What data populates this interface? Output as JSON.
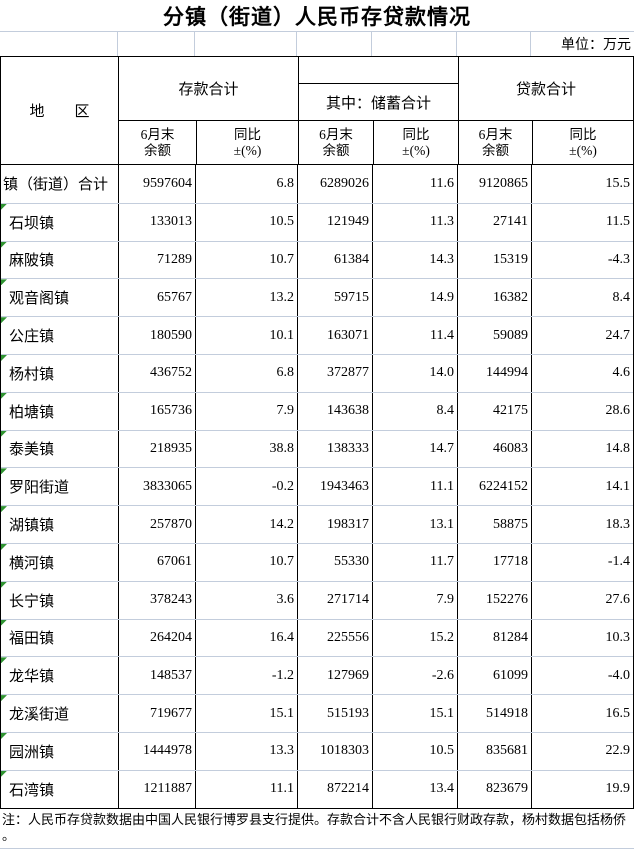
{
  "title": "分镇（街道）人民币存贷款情况",
  "unit_note": "单位：万元",
  "header": {
    "region_label": "地　　区",
    "groups": [
      {
        "label": "存款合计"
      },
      {
        "label": "其中：储蓄合计"
      },
      {
        "label": "贷款合计"
      }
    ],
    "sub": {
      "balance_l1": "6月末",
      "balance_l2": "余额",
      "yoy_l1": "同比",
      "yoy_l2": "±(%)"
    }
  },
  "rows": [
    {
      "name": "镇（街道）合计",
      "values": [
        "9597604",
        "6.8",
        "6289026",
        "11.6",
        "9120865",
        "15.5"
      ],
      "error_indicator": false
    },
    {
      "name": "石坝镇",
      "values": [
        "133013",
        "10.5",
        "121949",
        "11.3",
        "27141",
        "11.5"
      ],
      "error_indicator": true
    },
    {
      "name": "麻陂镇",
      "values": [
        "71289",
        "10.7",
        "61384",
        "14.3",
        "15319",
        "-4.3"
      ],
      "error_indicator": true
    },
    {
      "name": "观音阁镇",
      "values": [
        "65767",
        "13.2",
        "59715",
        "14.9",
        "16382",
        "8.4"
      ],
      "error_indicator": true
    },
    {
      "name": "公庄镇",
      "values": [
        "180590",
        "10.1",
        "163071",
        "11.4",
        "59089",
        "24.7"
      ],
      "error_indicator": true
    },
    {
      "name": "杨村镇",
      "values": [
        "436752",
        "6.8",
        "372877",
        "14.0",
        "144994",
        "4.6"
      ],
      "error_indicator": true
    },
    {
      "name": "柏塘镇",
      "values": [
        "165736",
        "7.9",
        "143638",
        "8.4",
        "42175",
        "28.6"
      ],
      "error_indicator": true
    },
    {
      "name": "泰美镇",
      "values": [
        "218935",
        "38.8",
        "138333",
        "14.7",
        "46083",
        "14.8"
      ],
      "error_indicator": true
    },
    {
      "name": "罗阳街道",
      "values": [
        "3833065",
        "-0.2",
        "1943463",
        "11.1",
        "6224152",
        "14.1"
      ],
      "error_indicator": true
    },
    {
      "name": "湖镇镇",
      "values": [
        "257870",
        "14.2",
        "198317",
        "13.1",
        "58875",
        "18.3"
      ],
      "error_indicator": true
    },
    {
      "name": "横河镇",
      "values": [
        "67061",
        "10.7",
        "55330",
        "11.7",
        "17718",
        "-1.4"
      ],
      "error_indicator": true
    },
    {
      "name": "长宁镇",
      "values": [
        "378243",
        "3.6",
        "271714",
        "7.9",
        "152276",
        "27.6"
      ],
      "error_indicator": true
    },
    {
      "name": "福田镇",
      "values": [
        "264204",
        "16.4",
        "225556",
        "15.2",
        "81284",
        "10.3"
      ],
      "error_indicator": true
    },
    {
      "name": "龙华镇",
      "values": [
        "148537",
        "-1.2",
        "127969",
        "-2.6",
        "61099",
        "-4.0"
      ],
      "error_indicator": true
    },
    {
      "name": "龙溪街道",
      "values": [
        "719677",
        "15.1",
        "515193",
        "15.1",
        "514918",
        "16.5"
      ],
      "error_indicator": true
    },
    {
      "name": "园洲镇",
      "values": [
        "1444978",
        "13.3",
        "1018303",
        "10.5",
        "835681",
        "22.9"
      ],
      "error_indicator": true
    },
    {
      "name": "石湾镇",
      "values": [
        "1211887",
        "11.1",
        "872214",
        "13.4",
        "823679",
        "19.9"
      ],
      "error_indicator": true
    }
  ],
  "footnote_lines": [
    "注：人民币存贷款数据由中国人民银行博罗县支行提供。存款合计不含人民银行财政存款，杨村数据包括杨侨",
    "。"
  ],
  "colors": {
    "border": "#000000",
    "gridline": "#c3cddc",
    "error_indicator": "#2f9331",
    "background": "#ffffff"
  }
}
